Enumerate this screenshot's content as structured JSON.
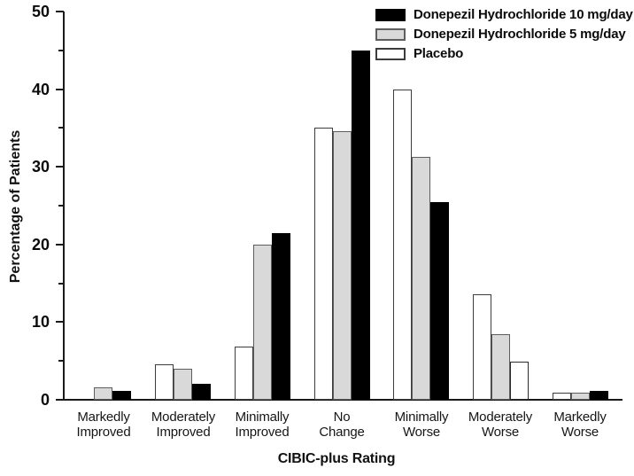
{
  "chart_data": {
    "type": "bar",
    "title": "",
    "xlabel": "CIBIC-plus Rating",
    "ylabel": "Percentage of Patients",
    "ylim": [
      0,
      50
    ],
    "y_major_ticks": [
      0,
      10,
      20,
      30,
      40,
      50
    ],
    "y_minor_tick_step": 5,
    "grid": false,
    "legend_position": "top-right",
    "categories": [
      "Markedly Improved",
      "Moderately Improved",
      "Minimally Improved",
      "No Change",
      "Minimally Worse",
      "Moderately Worse",
      "Markedly Worse"
    ],
    "series": [
      {
        "name": "Donepezil Hydrochloride 10 mg/day",
        "fill": "#000000",
        "border": "#000000",
        "values": [
          1.1,
          2.1,
          21.5,
          45.0,
          25.4,
          4.9,
          1.1
        ]
      },
      {
        "name": "Donepezil Hydrochloride 5 mg/day",
        "fill": "#d9d9d9",
        "border": "#5e5e5e",
        "values": [
          1.6,
          4.0,
          20.0,
          34.6,
          31.3,
          8.5,
          0.9
        ]
      },
      {
        "name": "Placebo",
        "fill": "#ffffff",
        "border": "#3c3c3c",
        "values": [
          0,
          4.6,
          6.8,
          35.0,
          40.0,
          13.6,
          0.9
        ]
      }
    ],
    "draw_order_left_to_right": [
      2,
      1,
      0
    ],
    "fill_overrides": [
      {
        "series_index": 0,
        "category_index": 5,
        "fill": "#ffffff",
        "border": "#2b2b2b"
      }
    ],
    "colors": {
      "axis": "#1a1a1a",
      "text": "#0b0b0b"
    }
  }
}
